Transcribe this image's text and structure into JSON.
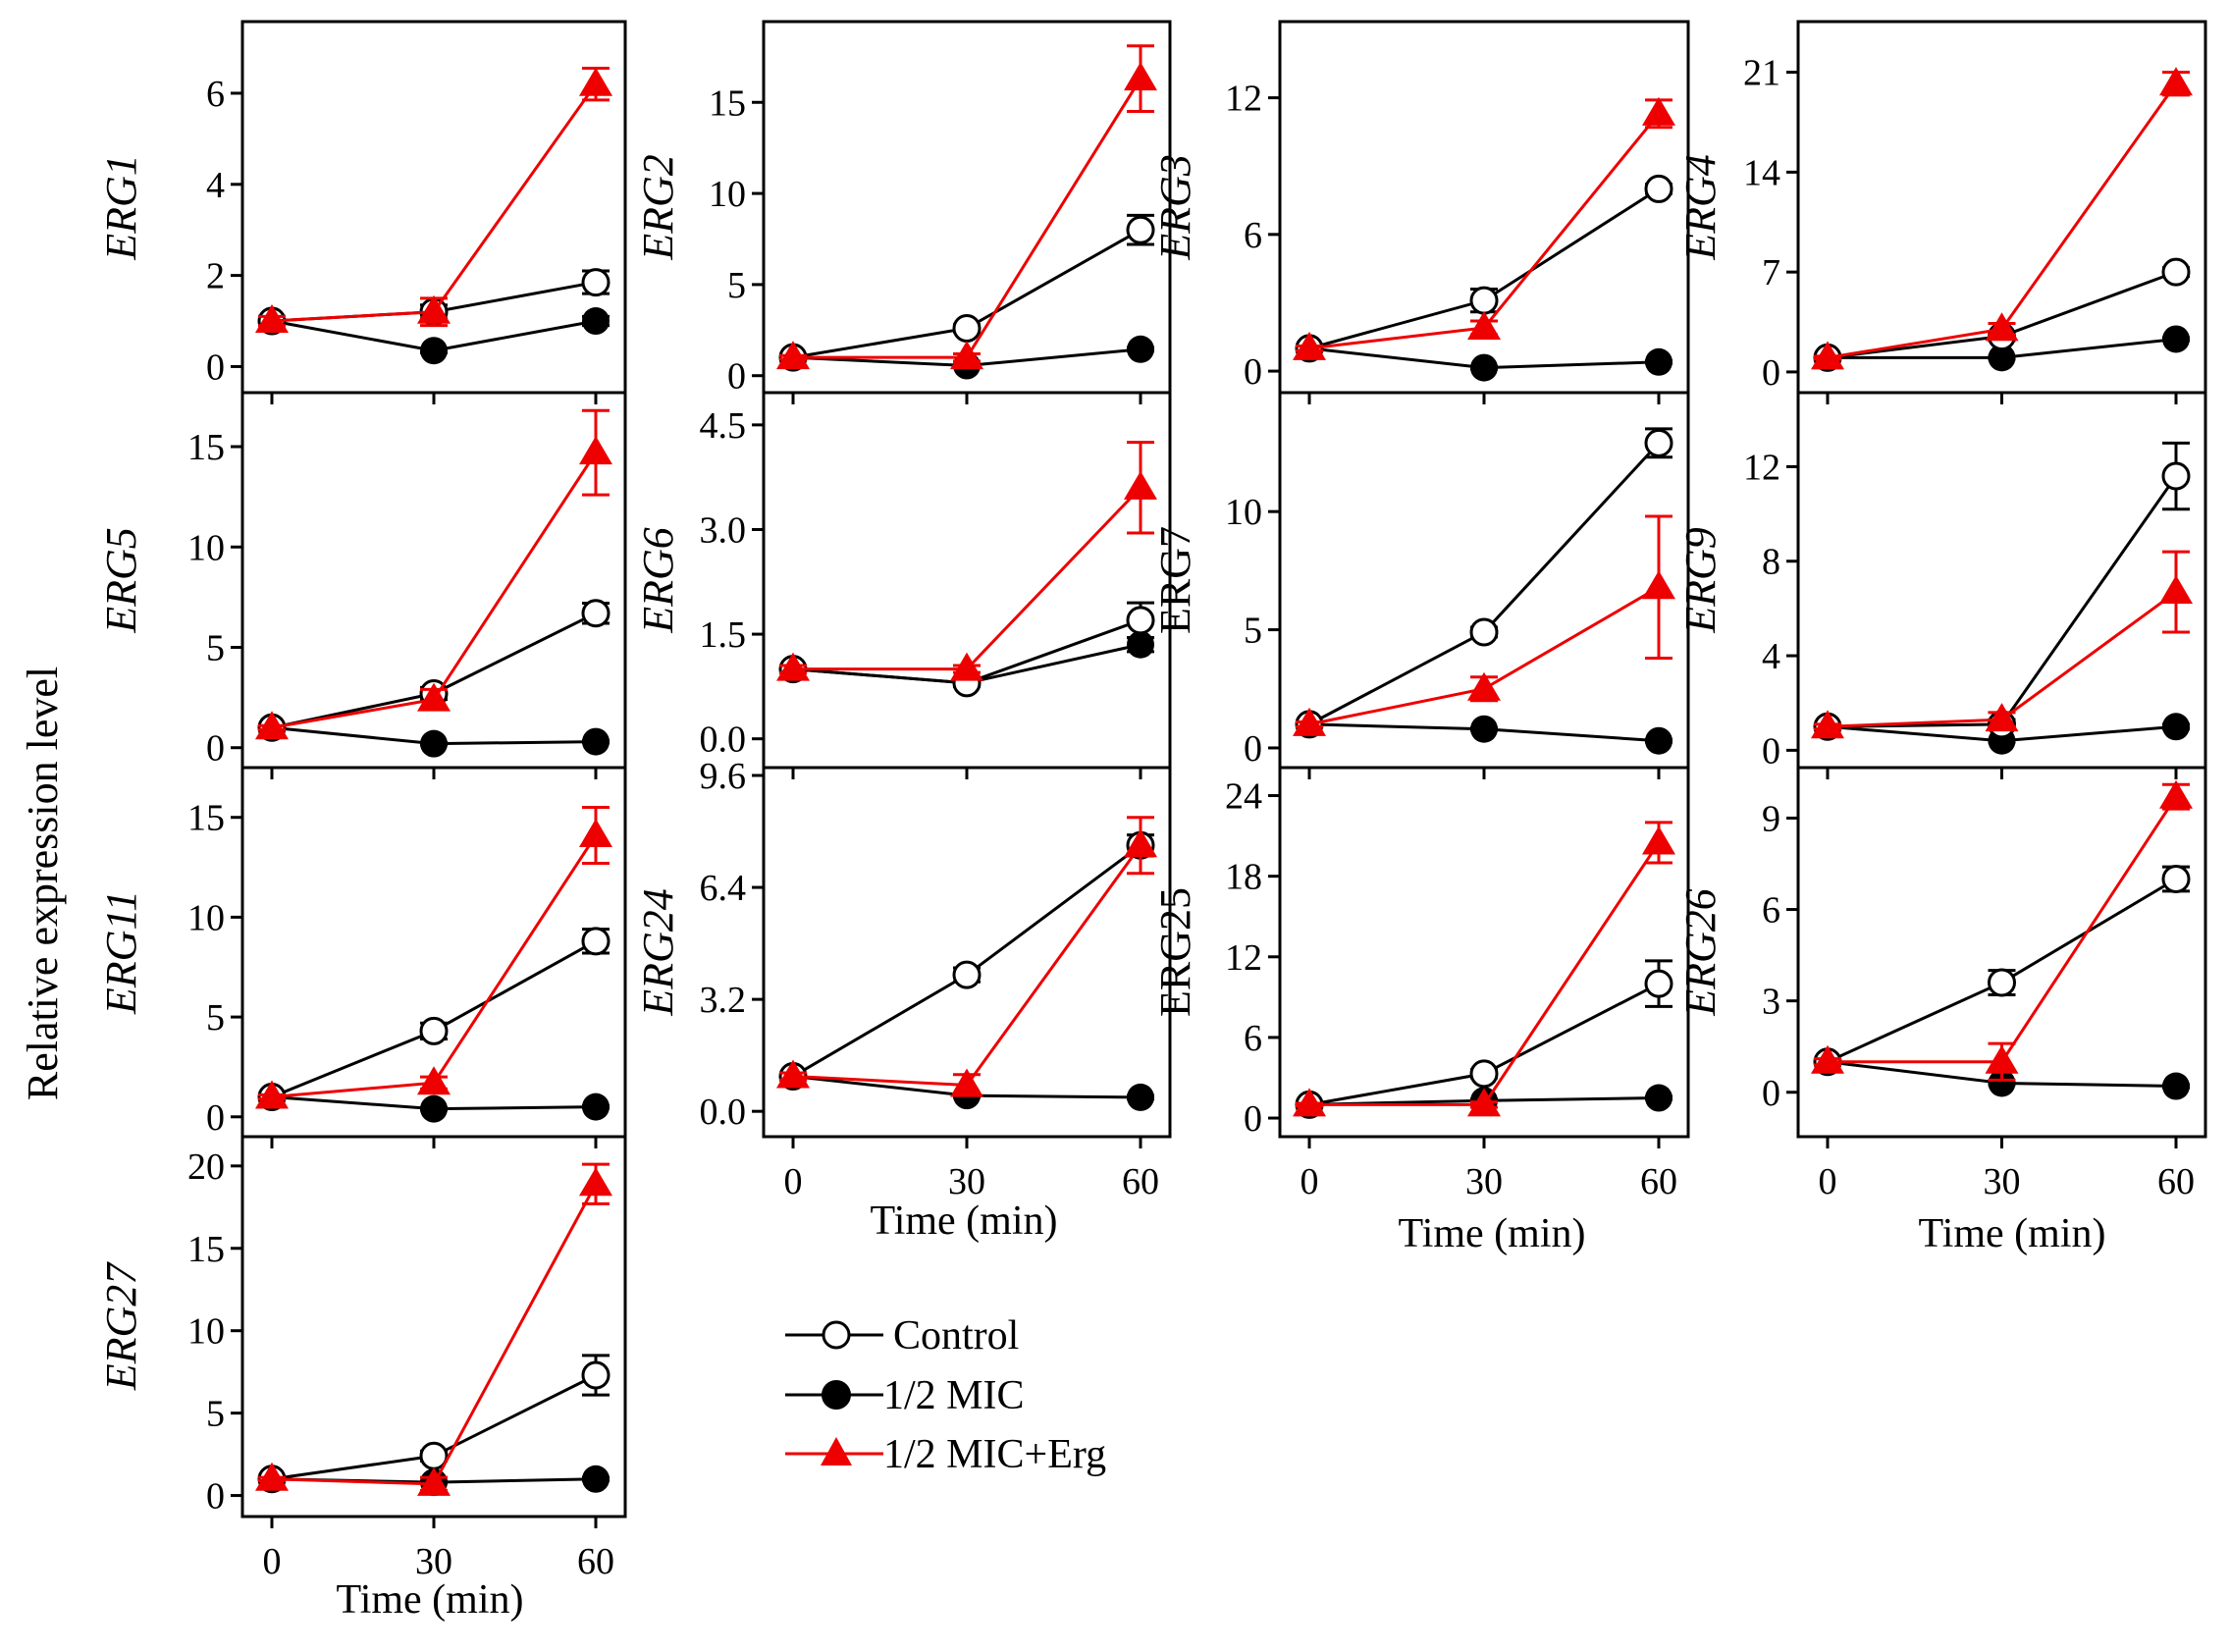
{
  "figure": {
    "y_axis_label": "Relative expression level",
    "x_axis_label": "Time (min)",
    "legend": [
      {
        "label": "Control",
        "marker": "open-circle",
        "color": "#000000"
      },
      {
        "label": "1/2 MIC",
        "marker": "filled-circle",
        "color": "#000000"
      },
      {
        "label": "1/2 MIC+Erg",
        "marker": "filled-triangle",
        "color": "#ee0000"
      }
    ]
  },
  "chart_data": [
    {
      "type": "line",
      "gene": "ERG1",
      "italic": true,
      "x": [
        0,
        30,
        60
      ],
      "ylim": [
        -0.4,
        7.4
      ],
      "yticks": [
        "0",
        "2",
        "4",
        "6"
      ],
      "ytick_values": [
        0,
        2,
        4,
        6
      ],
      "series": [
        {
          "name": "Control",
          "values": [
            1.0,
            1.2,
            1.85
          ],
          "errors": [
            0.1,
            0.15,
            0.25
          ]
        },
        {
          "name": "1/2 MIC",
          "values": [
            1.0,
            0.35,
            1.0
          ],
          "errors": [
            0.1,
            0.05,
            0.1
          ]
        },
        {
          "name": "1/2 MIC+Erg",
          "values": [
            1.0,
            1.2,
            6.2
          ],
          "errors": [
            0.1,
            0.3,
            0.35
          ]
        }
      ]
    },
    {
      "type": "line",
      "gene": "ERG2",
      "italic": true,
      "x": [
        0,
        30,
        60
      ],
      "ylim": [
        -0.5,
        19
      ],
      "yticks": [
        "0",
        "5",
        "10",
        "15"
      ],
      "ytick_values": [
        0,
        5,
        10,
        15
      ],
      "series": [
        {
          "name": "Control",
          "values": [
            1.0,
            2.6,
            8.0
          ],
          "errors": [
            0.1,
            0.2,
            0.8
          ]
        },
        {
          "name": "1/2 MIC",
          "values": [
            1.0,
            0.55,
            1.45
          ],
          "errors": [
            0.1,
            0.05,
            0.1
          ]
        },
        {
          "name": "1/2 MIC+Erg",
          "values": [
            1.0,
            1.0,
            16.3
          ],
          "errors": [
            0.1,
            0.2,
            1.8
          ]
        }
      ]
    },
    {
      "type": "line",
      "gene": "ERG3",
      "italic": true,
      "x": [
        0,
        30,
        60
      ],
      "ylim": [
        -0.6,
        15
      ],
      "yticks": [
        "0",
        "6",
        "12"
      ],
      "ytick_values": [
        0,
        6,
        12
      ],
      "series": [
        {
          "name": "Control",
          "values": [
            1.0,
            3.1,
            8.0
          ],
          "errors": [
            0.1,
            0.5,
            0.2
          ]
        },
        {
          "name": "1/2 MIC",
          "values": [
            1.0,
            0.15,
            0.4
          ],
          "errors": [
            0.1,
            0.05,
            0.05
          ]
        },
        {
          "name": "1/2 MIC+Erg",
          "values": [
            1.0,
            1.9,
            11.3
          ],
          "errors": [
            0.1,
            0.3,
            0.6
          ]
        }
      ]
    },
    {
      "type": "line",
      "gene": "ERG4",
      "italic": true,
      "x": [
        0,
        30,
        60
      ],
      "ylim": [
        -0.9,
        24
      ],
      "yticks": [
        "0",
        "7",
        "14",
        "21"
      ],
      "ytick_values": [
        0,
        7,
        14,
        21
      ],
      "series": [
        {
          "name": "Control",
          "values": [
            1.0,
            2.5,
            7.0
          ],
          "errors": [
            0.1,
            0.3,
            0.3
          ]
        },
        {
          "name": "1/2 MIC",
          "values": [
            1.0,
            1.0,
            2.3
          ],
          "errors": [
            0.1,
            0.1,
            0.1
          ]
        },
        {
          "name": "1/2 MIC+Erg",
          "values": [
            1.0,
            3.0,
            20.2
          ],
          "errors": [
            0.1,
            0.4,
            0.8
          ]
        }
      ]
    },
    {
      "type": "line",
      "gene": "ERG5",
      "italic": true,
      "x": [
        0,
        30,
        60
      ],
      "ylim": [
        -0.6,
        17.3
      ],
      "yticks": [
        "0",
        "5",
        "10",
        "15"
      ],
      "ytick_values": [
        0,
        5,
        10,
        15
      ],
      "series": [
        {
          "name": "Control",
          "values": [
            1.0,
            2.7,
            6.7
          ],
          "errors": [
            0.1,
            0.3,
            0.5
          ]
        },
        {
          "name": "1/2 MIC",
          "values": [
            1.0,
            0.2,
            0.3
          ],
          "errors": [
            0.1,
            0.05,
            0.05
          ]
        },
        {
          "name": "1/2 MIC+Erg",
          "values": [
            1.0,
            2.4,
            14.7
          ],
          "errors": [
            0.1,
            0.5,
            2.1
          ]
        }
      ]
    },
    {
      "type": "line",
      "gene": "ERG6",
      "italic": true,
      "x": [
        0,
        30,
        60
      ],
      "ylim": [
        -0.3,
        4.85
      ],
      "yticks": [
        "0.0",
        "1.5",
        "3.0",
        "4.5"
      ],
      "ytick_values": [
        0,
        1.5,
        3,
        4.5
      ],
      "series": [
        {
          "name": "Control",
          "values": [
            1.0,
            0.8,
            1.7
          ],
          "errors": [
            0.05,
            0.05,
            0.25
          ]
        },
        {
          "name": "1/2 MIC",
          "values": [
            1.0,
            0.8,
            1.35
          ],
          "errors": [
            0.05,
            0.05,
            0.1
          ]
        },
        {
          "name": "1/2 MIC+Erg",
          "values": [
            1.0,
            1.0,
            3.6
          ],
          "errors": [
            0.05,
            0.05,
            0.65
          ]
        }
      ]
    },
    {
      "type": "line",
      "gene": "ERG7",
      "italic": false,
      "x": [
        0,
        30,
        60
      ],
      "ylim": [
        -0.5,
        14.7
      ],
      "yticks": [
        "0",
        "5",
        "10"
      ],
      "ytick_values": [
        0,
        5,
        10
      ],
      "series": [
        {
          "name": "Control",
          "values": [
            1.0,
            4.9,
            12.9
          ],
          "errors": [
            0.1,
            0.2,
            0.6
          ]
        },
        {
          "name": "1/2 MIC",
          "values": [
            1.0,
            0.8,
            0.3
          ],
          "errors": [
            0.1,
            0.05,
            0.05
          ]
        },
        {
          "name": "1/2 MIC+Erg",
          "values": [
            1.0,
            2.5,
            6.8
          ],
          "errors": [
            0.1,
            0.5,
            3.0
          ]
        }
      ]
    },
    {
      "type": "line",
      "gene": "ERG9",
      "italic": true,
      "x": [
        0,
        30,
        60
      ],
      "ylim": [
        -0.4,
        14.8
      ],
      "yticks": [
        "0",
        "4",
        "8",
        "12"
      ],
      "ytick_values": [
        0,
        4,
        8,
        12
      ],
      "series": [
        {
          "name": "Control",
          "values": [
            1.0,
            1.1,
            11.6
          ],
          "errors": [
            0.1,
            0.2,
            1.4
          ]
        },
        {
          "name": "1/2 MIC",
          "values": [
            1.0,
            0.4,
            1.0
          ],
          "errors": [
            0.1,
            0.05,
            0.1
          ]
        },
        {
          "name": "1/2 MIC+Erg",
          "values": [
            1.0,
            1.3,
            6.7
          ],
          "errors": [
            0.1,
            0.3,
            1.7
          ]
        }
      ]
    },
    {
      "type": "line",
      "gene": "ERG11",
      "italic": true,
      "x": [
        0,
        30,
        60
      ],
      "ylim": [
        -0.6,
        17.1
      ],
      "yticks": [
        "0",
        "5",
        "10",
        "15"
      ],
      "ytick_values": [
        0,
        5,
        10,
        15
      ],
      "series": [
        {
          "name": "Control",
          "values": [
            1.0,
            4.3,
            8.8
          ],
          "errors": [
            0.1,
            0.4,
            0.6
          ]
        },
        {
          "name": "1/2 MIC",
          "values": [
            1.0,
            0.4,
            0.5
          ],
          "errors": [
            0.1,
            0.05,
            0.05
          ]
        },
        {
          "name": "1/2 MIC+Erg",
          "values": [
            1.0,
            1.7,
            14.1
          ],
          "errors": [
            0.1,
            0.3,
            1.4
          ]
        }
      ]
    },
    {
      "type": "line",
      "gene": "ERG24",
      "italic": true,
      "x": [
        0,
        30,
        60
      ],
      "ylim": [
        -0.5,
        9.6
      ],
      "yticks": [
        "0.0",
        "3.2",
        "6.4",
        "9.6"
      ],
      "ytick_values": [
        0,
        3.2,
        6.4,
        9.6
      ],
      "series": [
        {
          "name": "Control",
          "values": [
            1.0,
            3.9,
            7.6
          ],
          "errors": [
            0.1,
            0.2,
            0.3
          ]
        },
        {
          "name": "1/2 MIC",
          "values": [
            1.0,
            0.45,
            0.4
          ],
          "errors": [
            0.1,
            0.05,
            0.05
          ]
        },
        {
          "name": "1/2 MIC+Erg",
          "values": [
            1.0,
            0.75,
            7.6
          ],
          "errors": [
            0.1,
            0.3,
            0.8
          ]
        }
      ]
    },
    {
      "type": "line",
      "gene": "ERG25",
      "italic": false,
      "x": [
        0,
        30,
        60
      ],
      "ylim": [
        -0.8,
        25.5
      ],
      "yticks": [
        "0",
        "6",
        "12",
        "18",
        "24"
      ],
      "ytick_values": [
        0,
        6,
        12,
        18,
        24
      ],
      "series": [
        {
          "name": "Control",
          "values": [
            1.0,
            3.3,
            10.0
          ],
          "errors": [
            0.1,
            0.3,
            1.7
          ]
        },
        {
          "name": "1/2 MIC",
          "values": [
            1.0,
            1.3,
            1.5
          ],
          "errors": [
            0.1,
            0.1,
            0.1
          ]
        },
        {
          "name": "1/2 MIC+Erg",
          "values": [
            1.0,
            1.0,
            20.5
          ],
          "errors": [
            0.1,
            0.2,
            1.5
          ]
        }
      ]
    },
    {
      "type": "line",
      "gene": "ERG26",
      "italic": true,
      "x": [
        0,
        30,
        60
      ],
      "ylim": [
        -1.2,
        10.4
      ],
      "yticks": [
        "0",
        "3",
        "6",
        "9"
      ],
      "ytick_values": [
        0,
        3,
        6,
        9
      ],
      "series": [
        {
          "name": "Control",
          "values": [
            1.0,
            3.6,
            7.0
          ],
          "errors": [
            0.1,
            0.4,
            0.4
          ]
        },
        {
          "name": "1/2 MIC",
          "values": [
            1.0,
            0.3,
            0.2
          ],
          "errors": [
            0.1,
            0.05,
            0.05
          ]
        },
        {
          "name": "1/2 MIC+Erg",
          "values": [
            1.0,
            1.0,
            9.7
          ],
          "errors": [
            0.1,
            0.6,
            0.4
          ]
        }
      ]
    },
    {
      "type": "line",
      "gene": "ERG27",
      "italic": true,
      "x": [
        0,
        30,
        60
      ],
      "ylim": [
        -0.8,
        21.3
      ],
      "yticks": [
        "0",
        "5",
        "10",
        "15",
        "20"
      ],
      "ytick_values": [
        0,
        5,
        10,
        15,
        20
      ],
      "series": [
        {
          "name": "Control",
          "values": [
            1.0,
            2.4,
            7.3
          ],
          "errors": [
            0.1,
            0.3,
            1.2
          ]
        },
        {
          "name": "1/2 MIC",
          "values": [
            1.0,
            0.8,
            1.0
          ],
          "errors": [
            0.1,
            0.05,
            0.1
          ]
        },
        {
          "name": "1/2 MIC+Erg",
          "values": [
            1.0,
            0.7,
            18.9
          ],
          "errors": [
            0.1,
            0.4,
            1.2
          ]
        }
      ]
    }
  ]
}
